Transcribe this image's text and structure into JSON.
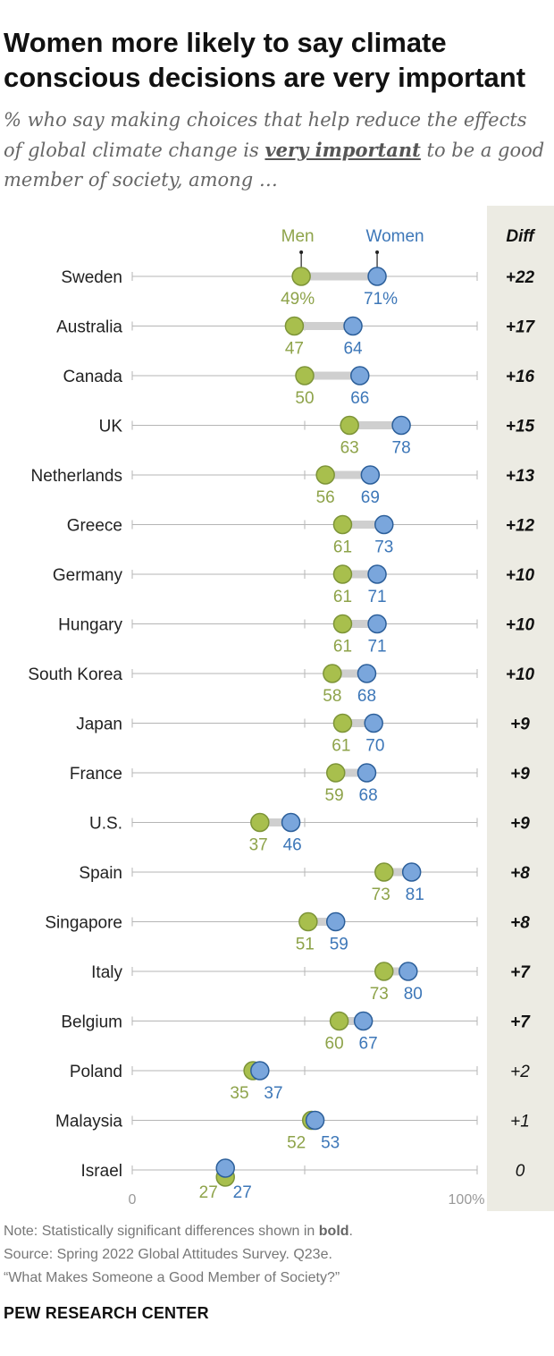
{
  "title": "Women more likely to say climate conscious decisions are very important",
  "subtitle": {
    "before": "% who say making choices that help reduce the effects of global climate change is ",
    "emphasis": "very important",
    "after": " to be a good member of society, among …"
  },
  "note": {
    "line1_before": "Note: Statistically significant differences shown in ",
    "line1_bold": "bold",
    "line1_after": ".",
    "line2": "Source: Spring 2022 Global Attitudes Survey. Q23e.",
    "line3": "“What Makes Someone a Good Member of Society?”"
  },
  "brand": "PEW RESEARCH CENTER",
  "colors": {
    "men": "#a8bf4d",
    "men_text": "#8ea34a",
    "women": "#3d77b8",
    "women_fill": "#7aa6dc",
    "diff_bg": "#ecebe3",
    "axis": "#9a9a9a"
  },
  "chart_data": {
    "type": "dot-plot",
    "series": [
      {
        "name": "Men",
        "values": [
          49,
          47,
          50,
          63,
          56,
          61,
          61,
          61,
          58,
          61,
          59,
          37,
          73,
          51,
          73,
          60,
          35,
          52,
          27
        ]
      },
      {
        "name": "Women",
        "values": [
          71,
          64,
          66,
          78,
          69,
          73,
          71,
          71,
          68,
          70,
          68,
          46,
          81,
          59,
          80,
          67,
          37,
          53,
          27
        ]
      }
    ],
    "categories": [
      "Sweden",
      "Australia",
      "Canada",
      "UK",
      "Netherlands",
      "Greece",
      "Germany",
      "Hungary",
      "South Korea",
      "Japan",
      "France",
      "U.S.",
      "Spain",
      "Singapore",
      "Italy",
      "Belgium",
      "Poland",
      "Malaysia",
      "Israel"
    ],
    "diff": [
      "+22",
      "+17",
      "+16",
      "+15",
      "+13",
      "+12",
      "+10",
      "+10",
      "+10",
      "+9",
      "+9",
      "+9",
      "+8",
      "+8",
      "+7",
      "+7",
      "+2",
      "+1",
      "0"
    ],
    "significant": [
      true,
      true,
      true,
      true,
      true,
      true,
      true,
      true,
      true,
      true,
      true,
      true,
      true,
      true,
      true,
      true,
      false,
      false,
      false
    ],
    "diff_header": "Diff",
    "first_row_suffix": "%",
    "xlim": [
      0,
      100
    ],
    "axis_tick_labels": [
      "0",
      "100%"
    ]
  }
}
